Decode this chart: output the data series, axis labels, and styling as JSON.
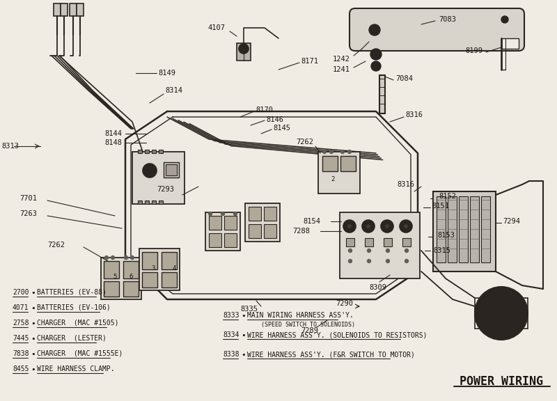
{
  "title": "POWER WIRING",
  "bg": "#f0ece4",
  "lc": "#2a2520",
  "tc": "#1a1510",
  "fig_width": 8.0,
  "fig_height": 5.76,
  "legend_left": [
    [
      "2700",
      "BATTERIES (EV-88)"
    ],
    [
      "4071",
      "BATTERIES (EV-106)"
    ],
    [
      "2758",
      "CHARGER  (MAC #1505)"
    ],
    [
      "7445",
      "CHARGER  (LESTER)"
    ],
    [
      "7838",
      "CHARGER  (MAC #1555E)"
    ],
    [
      "8455",
      "WIRE HARNESS CLAMP."
    ]
  ],
  "legend_right": [
    [
      "8333",
      "MAIN WIRING HARNESS ASS'Y.",
      "(SPEED SWITCH TO SOLENOIDS)"
    ],
    [
      "8334",
      "WIRE HARNESS ASS'Y. (SOLENOIDS TO RESISTORS)",
      ""
    ],
    [
      "8338",
      "WIRE HARNESS ASS'Y. (F&R SWITCH TO MOTOR)",
      ""
    ]
  ]
}
